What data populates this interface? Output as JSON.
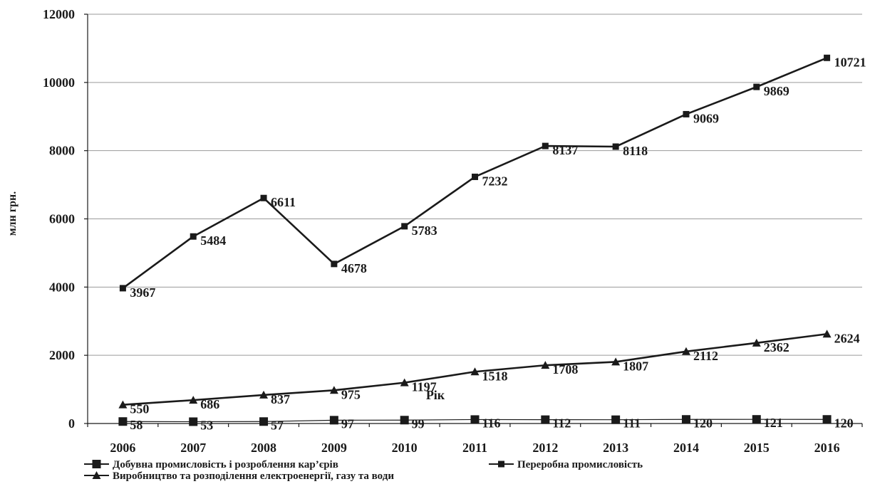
{
  "chart_data": {
    "type": "line",
    "title": "",
    "xlabel": "Рік",
    "ylabel": "млн грн.",
    "ylim": [
      0,
      12000
    ],
    "yticks": [
      0,
      2000,
      4000,
      6000,
      8000,
      10000,
      12000
    ],
    "grid": true,
    "legend_position": "bottom",
    "categories": [
      "2006",
      "2007",
      "2008",
      "2009",
      "2010",
      "2011",
      "2012",
      "2013",
      "2014",
      "2015",
      "2016"
    ],
    "series": [
      {
        "name": "Добувна промисловість і розроблення кар’єрів",
        "marker": "big-square",
        "values": [
          58,
          53,
          57,
          97,
          99,
          116,
          112,
          111,
          120,
          121,
          120
        ]
      },
      {
        "name": "Переробна промисловість",
        "marker": "square",
        "values": [
          3967,
          5484,
          6611,
          4678,
          5783,
          7232,
          8137,
          8118,
          9069,
          9869,
          10721
        ]
      },
      {
        "name": "Виробництво та розподілення електроенергії, газу та води",
        "marker": "triangle",
        "values": [
          550,
          686,
          837,
          975,
          1197,
          1518,
          1708,
          1807,
          2112,
          2362,
          2624
        ]
      }
    ],
    "line_color": "#1a1a1a"
  }
}
